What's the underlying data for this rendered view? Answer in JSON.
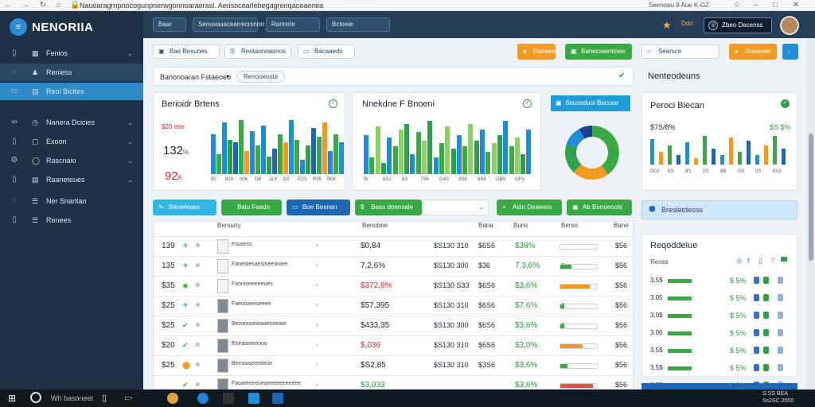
{
  "browser": {
    "url": "Nauoaragrnpnocogunpnerwgonnoaraerasl. Aerisocearlebegagrenqaceaenea",
    "right_text": "Seenneu 9 Aue K-GZ",
    "nav_icons": [
      "back-icon",
      "forward-icon",
      "reload-icon",
      "home-icon",
      "lock-icon"
    ]
  },
  "app": {
    "name": "NENORIIA"
  },
  "sidebar": {
    "items": [
      {
        "label": "Fenios",
        "chevron": true
      },
      {
        "label": "Reniess",
        "chevron": false
      },
      {
        "label": "Reol Bicites",
        "chevron": false
      },
      {
        "label": "Nanera Dcicies",
        "chevron": true
      },
      {
        "label": "Exoon",
        "chevron": true
      },
      {
        "label": "Rascnaio",
        "chevron": true
      },
      {
        "label": "Raaneteues",
        "chevron": true
      },
      {
        "label": "Ner Snaritan",
        "chevron": false
      },
      {
        "label": "Renees",
        "chevron": false
      }
    ]
  },
  "topbar": {
    "buttons": [
      "Baar",
      "Senuvauacearrecrsnorr",
      "Rannirie",
      "Bcteeie"
    ],
    "user_label": "Ddo",
    "pill_label": "Zbeo Decenss"
  },
  "toolbar": {
    "filters": [
      "Bae Besuoes",
      "Reotaonoasnos",
      "Bacaaeds"
    ],
    "btn_orange": "Ranseee",
    "btn_green": "Banecseentoee",
    "search_label": "Searsce",
    "btn_orange2": "Doeavee"
  },
  "breadcrumb": {
    "text": "Banonoaran Fstaeoeo",
    "chip": "Renooeoste"
  },
  "card1": {
    "title": "Berioidr Brtens",
    "kpi_small": "$20 ebe",
    "kpi1": "132",
    "kpi1_suffix": "%",
    "kpi2": "92",
    "kpi2_suffix": "K",
    "ticks": [
      "00",
      "810",
      "006",
      "DB",
      "3L9",
      "D0",
      "E2S",
      "R05",
      "B08"
    ]
  },
  "card2": {
    "title": "Nnekdne F Bnoeni",
    "ticks": [
      "I5",
      "6S2",
      "6S",
      "7S6",
      "G4S",
      "8S6",
      "8S4",
      "GBS",
      "GFS"
    ]
  },
  "card3": {
    "header": "Snuseduoi Bacuue",
    "donut": {
      "segments": [
        {
          "color": "#3aa845",
          "value": 40
        },
        {
          "color": "#f39a21",
          "value": 22
        },
        {
          "color": "#2fa04a",
          "value": 18
        },
        {
          "color": "#1f8ed6",
          "value": 12
        },
        {
          "color": "#1d3f8f",
          "value": 8
        }
      ]
    }
  },
  "card4": {
    "title": "Peroci Biecan",
    "kpi_left": "$7S/8%",
    "kpi_right": "$S $%",
    "ticks": [
      "D03",
      "6S",
      "8S",
      "2S",
      "8B",
      "G5",
      "0S",
      "E03"
    ]
  },
  "actions": {
    "btn1": "Banieleaes",
    "btn2": "Baiu Faedo",
    "btn3": "Boe Besnsn",
    "btn4": "Beas doemiale",
    "btn5": "Aidn Deaieeis",
    "btn6": "Ab Bonoeoois"
  },
  "table": {
    "headers": [
      "Bersuoy",
      "Benobne",
      "Bana",
      "Buns",
      "Berso",
      "Bane"
    ],
    "rows": [
      {
        "id": "139",
        "name": "Fisoeiss",
        "price": "$0,84",
        "mid": "$S130 310",
        "col5": "$6S6",
        "pct": "$36%",
        "label": "",
        "progress": 0,
        "end": "$56"
      },
      {
        "id": "135",
        "name": "Faneoiesaesioeeaniee",
        "price": "7,2,6%",
        "mid": "$S130 300",
        "col5": "$36",
        "pct": "7,3,6%",
        "label": "Fenooo",
        "progress": 0.3,
        "end": "$56"
      },
      {
        "id": "$35",
        "name": "Faoniseeeeeues",
        "price": "$372,8%",
        "mid": "$S130 S33",
        "col5": "$6S6",
        "pct": "$3,6%",
        "label": "",
        "progress": 0.8,
        "end": "$56"
      },
      {
        "id": "$25",
        "name": "Faeoiseeiseeee",
        "price": "$57,395",
        "mid": "$S130 310",
        "col5": "$6S6",
        "pct": "$7,6%",
        "label": "Fenoeee",
        "progress": 0.1,
        "end": "$56"
      },
      {
        "id": "$25",
        "name": "Beiseniseieaaeoneaie",
        "price": "$433,35",
        "mid": "$S130 300",
        "col5": "$6S6",
        "pct": "$3,6%",
        "label": "Fenoeee",
        "progress": 0.1,
        "end": "$56"
      },
      {
        "id": "$20",
        "name": "Eneaiseeeooo",
        "price": "$,036",
        "mid": "$S130 310",
        "col5": "$6S6",
        "pct": "$3,0%",
        "label": "",
        "progress": 0.6,
        "end": "$56"
      },
      {
        "id": "$25",
        "name": "Beinooseeeiieiie",
        "price": "$S2,85",
        "mid": "$S130 310",
        "col5": "$3S6",
        "pct": "$3,6%",
        "label": "",
        "progress": 0.2,
        "end": "$56"
      },
      {
        "id": "",
        "name": "Faoaeieeeseoeeeeeeeeeee",
        "price": "$3,033",
        "mid": "",
        "col5": "",
        "pct": "$3,6%",
        "label": "",
        "progress": 0.9,
        "end": "$56"
      }
    ]
  },
  "right_panel": {
    "title": "Nenteodeuns",
    "blue_label": "Bresletdeoss",
    "list_title": "Reqoddeiue",
    "list_sub": "Reoss",
    "rows": [
      "3,5$",
      "3.05",
      "3,0$",
      "3.06",
      "3.5$",
      "3.5$",
      "3.05"
    ],
    "pct": "$ 5%"
  },
  "taskbar": {
    "search": "Wh basoneet",
    "clock_time": "S:SS BEA",
    "clock_date": "Ss2SC.2000"
  }
}
